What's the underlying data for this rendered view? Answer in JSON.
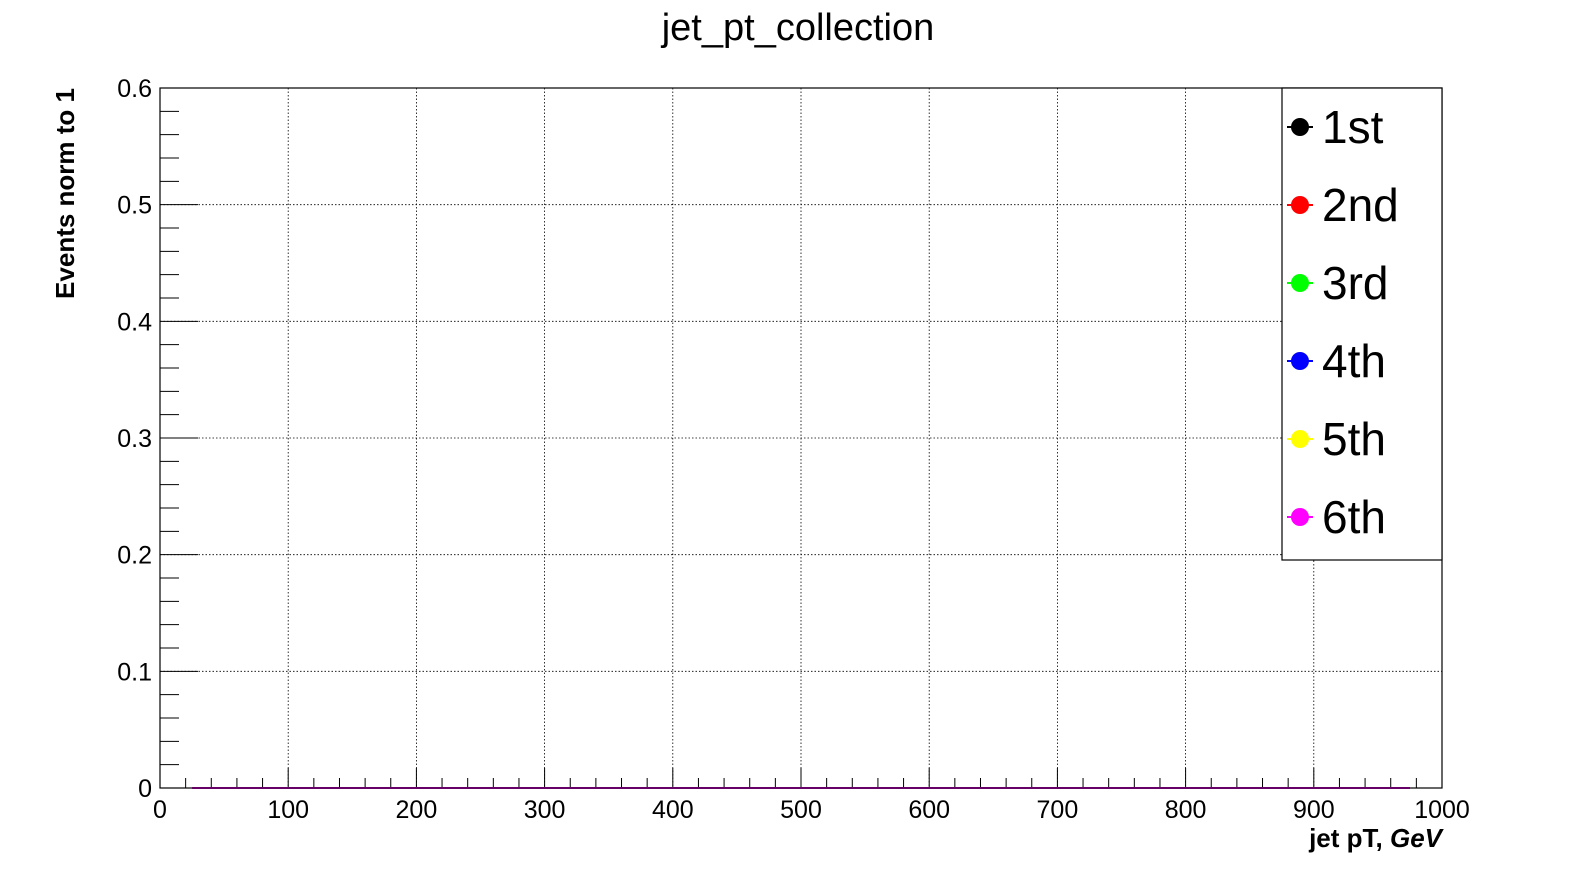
{
  "chart_data": {
    "type": "line",
    "title": "jet_pt_collection",
    "xlabel_main": "jet pT, ",
    "xlabel_unit": "GeV",
    "ylabel": "Events norm to 1",
    "xlim": [
      0,
      1000
    ],
    "ylim": [
      0,
      0.6
    ],
    "x_major_ticks": [
      0,
      100,
      200,
      300,
      400,
      500,
      600,
      700,
      800,
      900,
      1000
    ],
    "x_tick_labels": [
      "0",
      "100",
      "200",
      "300",
      "400",
      "500",
      "600",
      "700",
      "800",
      "900",
      "1000"
    ],
    "y_major_ticks": [
      0,
      0.1,
      0.2,
      0.3,
      0.4,
      0.5,
      0.6
    ],
    "y_tick_labels": [
      "0",
      "0.1",
      "0.2",
      "0.3",
      "0.4",
      "0.5",
      "0.6"
    ],
    "grid": true,
    "legend_position": "top-right",
    "series": [
      {
        "name": "1st",
        "color": "#000000",
        "x": [
          25,
          975
        ],
        "y": [
          0,
          0
        ]
      },
      {
        "name": "2nd",
        "color": "#ff0000",
        "x": [
          25,
          975
        ],
        "y": [
          0,
          0
        ]
      },
      {
        "name": "3rd",
        "color": "#00ff00",
        "x": [
          25,
          975
        ],
        "y": [
          0,
          0
        ]
      },
      {
        "name": "4th",
        "color": "#0000ff",
        "x": [
          25,
          975
        ],
        "y": [
          0,
          0
        ]
      },
      {
        "name": "5th",
        "color": "#ffff00",
        "x": [
          25,
          975
        ],
        "y": [
          0,
          0
        ]
      },
      {
        "name": "6th",
        "color": "#ff00ff",
        "x": [
          25,
          975
        ],
        "y": [
          0,
          0
        ]
      }
    ]
  }
}
